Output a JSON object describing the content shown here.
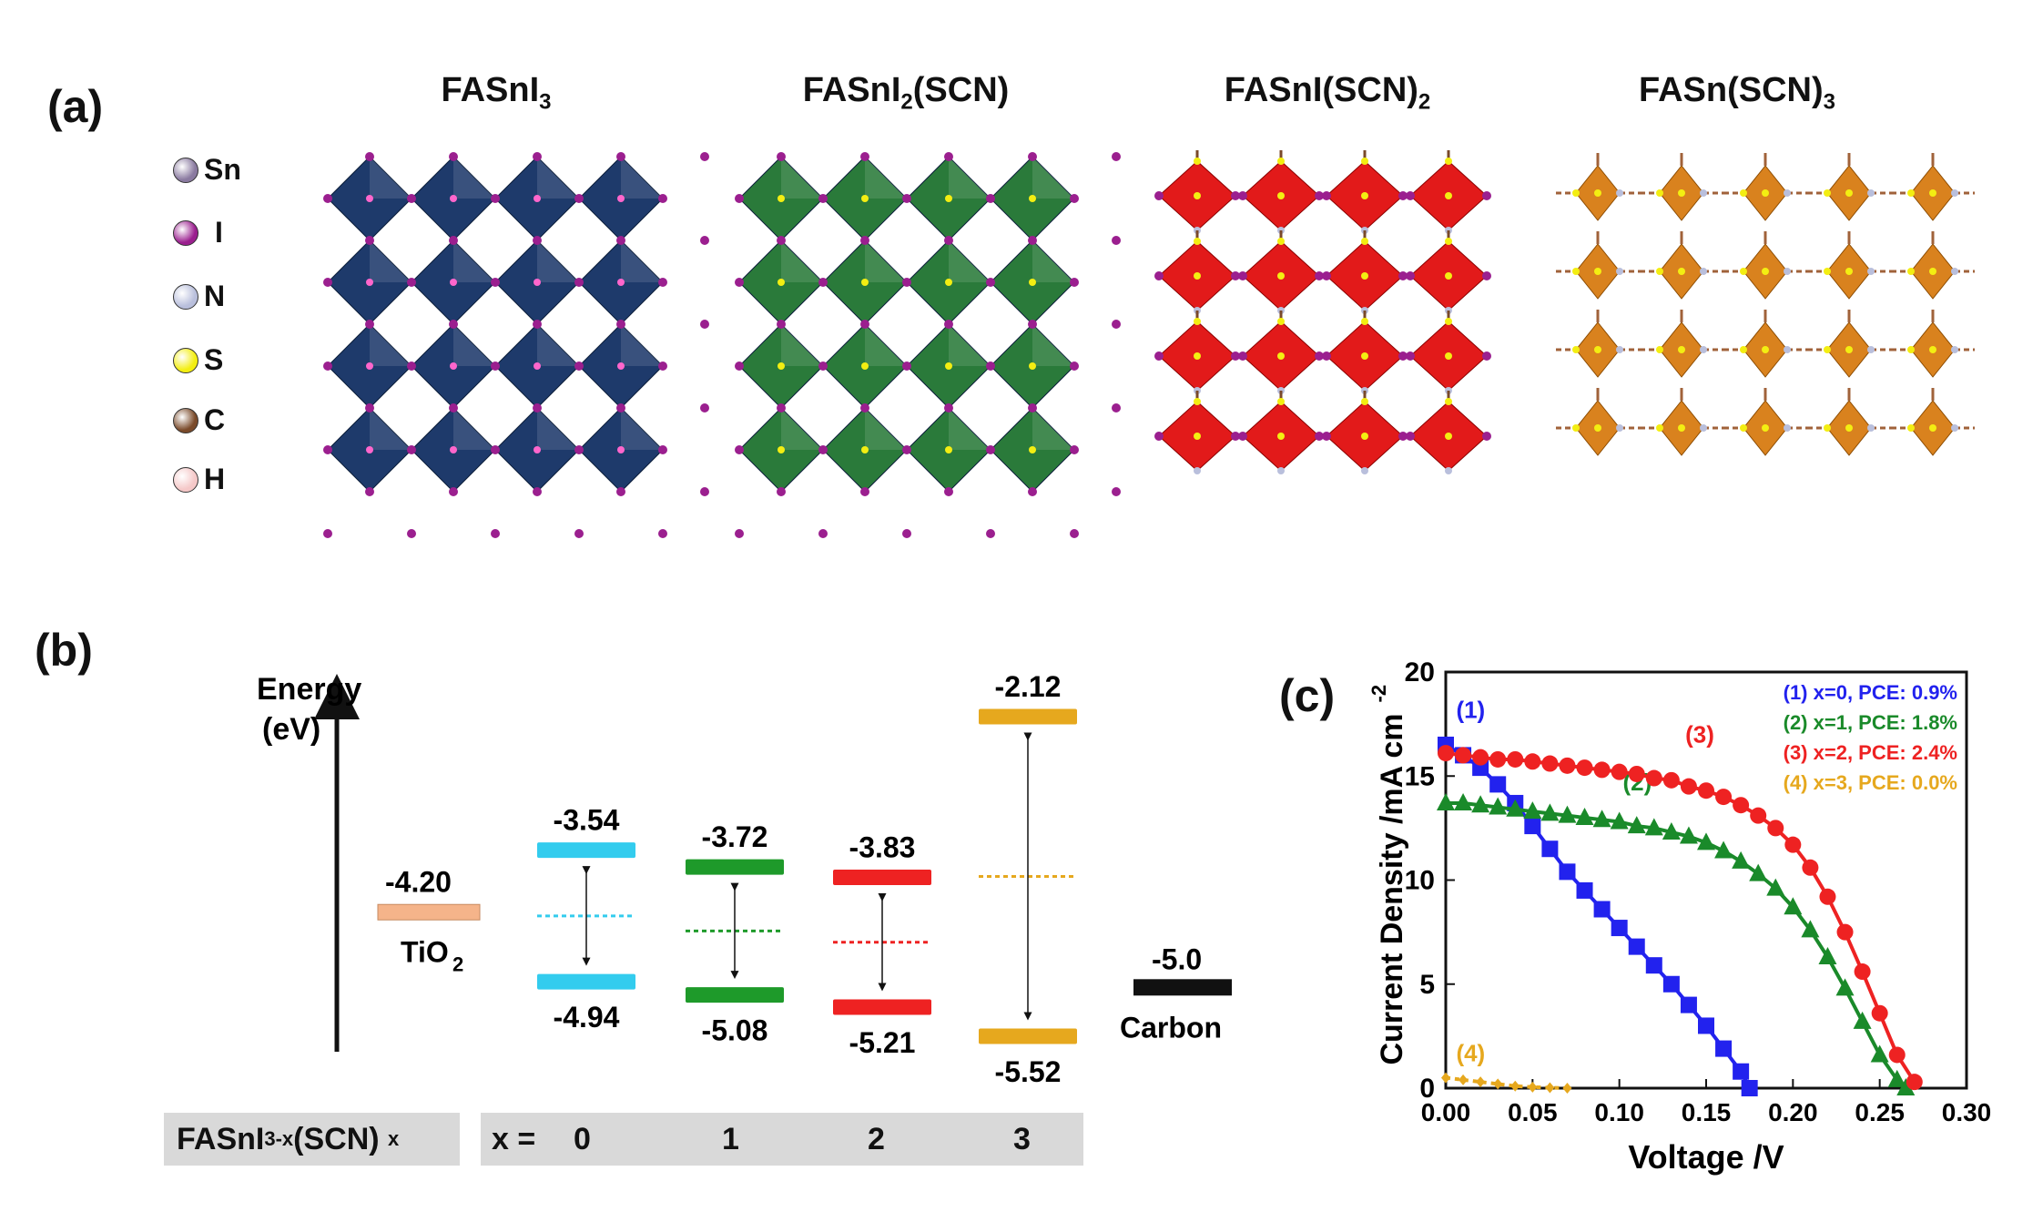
{
  "panels": {
    "a": "(a)",
    "b": "(b)",
    "c": "(c)"
  },
  "structures": [
    {
      "base": "FASnI",
      "sub": "3",
      "tail": "",
      "color": "#1e3a6b"
    },
    {
      "base": "FASnI",
      "sub": "2",
      "tail": "(SCN)",
      "color": "#2a7a3a"
    },
    {
      "base": "FASnI(SCN)",
      "sub": "2",
      "tail": "",
      "color": "#e21a1a"
    },
    {
      "base": "FASn(SCN)",
      "sub": "3",
      "tail": "",
      "color": "#d9821e"
    }
  ],
  "atoms": [
    {
      "symbol": "Sn",
      "color": "#8a7aa0"
    },
    {
      "symbol": "I",
      "color": "#9b1f8f"
    },
    {
      "symbol": "N",
      "color": "#b9bfdc"
    },
    {
      "symbol": "S",
      "color": "#f3ee12"
    },
    {
      "symbol": "C",
      "color": "#7a4a2a"
    },
    {
      "symbol": "H",
      "color": "#f5c8c8"
    }
  ],
  "energy": {
    "axis_label_1": "Energy",
    "axis_label_2": "(eV)",
    "tio2": {
      "value": "-4.20",
      "label": "TiO",
      "sub": "2",
      "level": -4.2,
      "color": "#f5b48a"
    },
    "carbon": {
      "value": "-5.0",
      "label": "Carbon",
      "level": -5.0,
      "color": "#111111"
    },
    "materials": [
      {
        "x": "0",
        "cb": -3.54,
        "vb": -4.94,
        "cb_label": "-3.54",
        "vb_label": "-4.94",
        "color": "#33ccee"
      },
      {
        "x": "1",
        "cb": -3.72,
        "vb": -5.08,
        "cb_label": "-3.72",
        "vb_label": "-5.08",
        "color": "#1e9a2a"
      },
      {
        "x": "2",
        "cb": -3.83,
        "vb": -5.21,
        "cb_label": "-3.83",
        "vb_label": "-5.21",
        "color": "#ee2222"
      },
      {
        "x": "3",
        "cb": -2.12,
        "vb": -5.52,
        "cb_label": "-2.12",
        "vb_label": "-5.52",
        "color": "#e6a81e"
      }
    ],
    "row_label_base": "FASnI",
    "row_label_sub": "3-x",
    "row_label_tail": "(SCN)",
    "row_label_x": "x",
    "x_eq": "x ="
  },
  "chart_data": {
    "type": "line",
    "xlabel": "Voltage /V",
    "ylabel": "Current Density /mA cm",
    "ylabel_sup": "-2",
    "xlim": [
      0,
      0.3
    ],
    "ylim": [
      0,
      20
    ],
    "xticks": [
      "0.00",
      "0.05",
      "0.10",
      "0.15",
      "0.20",
      "0.25",
      "0.30"
    ],
    "yticks": [
      "0",
      "5",
      "10",
      "15",
      "20"
    ],
    "series": [
      {
        "name": "(1) x=0, PCE: 0.9%",
        "tag": "(1)",
        "color": "#2222ee",
        "marker": "square",
        "x": [
          0,
          0.01,
          0.02,
          0.03,
          0.04,
          0.05,
          0.06,
          0.07,
          0.08,
          0.09,
          0.1,
          0.11,
          0.12,
          0.13,
          0.14,
          0.15,
          0.16,
          0.17,
          0.175
        ],
        "y": [
          16.5,
          16.0,
          15.4,
          14.6,
          13.7,
          12.6,
          11.5,
          10.4,
          9.5,
          8.6,
          7.7,
          6.8,
          5.9,
          5.0,
          4.0,
          3.0,
          1.9,
          0.8,
          0
        ]
      },
      {
        "name": "(2) x=1, PCE: 1.8%",
        "tag": "(2)",
        "color": "#1a8a2a",
        "marker": "triangle",
        "x": [
          0,
          0.01,
          0.02,
          0.03,
          0.04,
          0.05,
          0.06,
          0.07,
          0.08,
          0.09,
          0.1,
          0.11,
          0.12,
          0.13,
          0.14,
          0.15,
          0.16,
          0.17,
          0.18,
          0.19,
          0.2,
          0.21,
          0.22,
          0.23,
          0.24,
          0.25,
          0.26,
          0.265
        ],
        "y": [
          13.7,
          13.7,
          13.6,
          13.5,
          13.4,
          13.3,
          13.2,
          13.1,
          13.0,
          12.9,
          12.8,
          12.6,
          12.5,
          12.3,
          12.1,
          11.8,
          11.4,
          10.9,
          10.3,
          9.6,
          8.7,
          7.6,
          6.3,
          4.8,
          3.2,
          1.6,
          0.4,
          0
        ]
      },
      {
        "name": "(3) x=2, PCE: 2.4%",
        "tag": "(3)",
        "color": "#ee2222",
        "marker": "circle",
        "x": [
          0,
          0.01,
          0.02,
          0.03,
          0.04,
          0.05,
          0.06,
          0.07,
          0.08,
          0.09,
          0.1,
          0.11,
          0.12,
          0.13,
          0.14,
          0.15,
          0.16,
          0.17,
          0.18,
          0.19,
          0.2,
          0.21,
          0.22,
          0.23,
          0.24,
          0.25,
          0.26,
          0.27
        ],
        "y": [
          16.1,
          16.0,
          15.9,
          15.8,
          15.8,
          15.7,
          15.6,
          15.5,
          15.4,
          15.3,
          15.2,
          15.1,
          14.9,
          14.8,
          14.5,
          14.3,
          14.0,
          13.6,
          13.1,
          12.5,
          11.7,
          10.6,
          9.2,
          7.5,
          5.6,
          3.6,
          1.6,
          0.3
        ]
      },
      {
        "name": "(4) x=3, PCE: 0.0%",
        "tag": "(4)",
        "color": "#e6a81e",
        "marker": "diamond",
        "x": [
          0,
          0.01,
          0.02,
          0.03,
          0.04,
          0.05,
          0.06,
          0.07
        ],
        "y": [
          0.5,
          0.4,
          0.3,
          0.2,
          0.1,
          0.05,
          0.02,
          0
        ]
      }
    ]
  }
}
